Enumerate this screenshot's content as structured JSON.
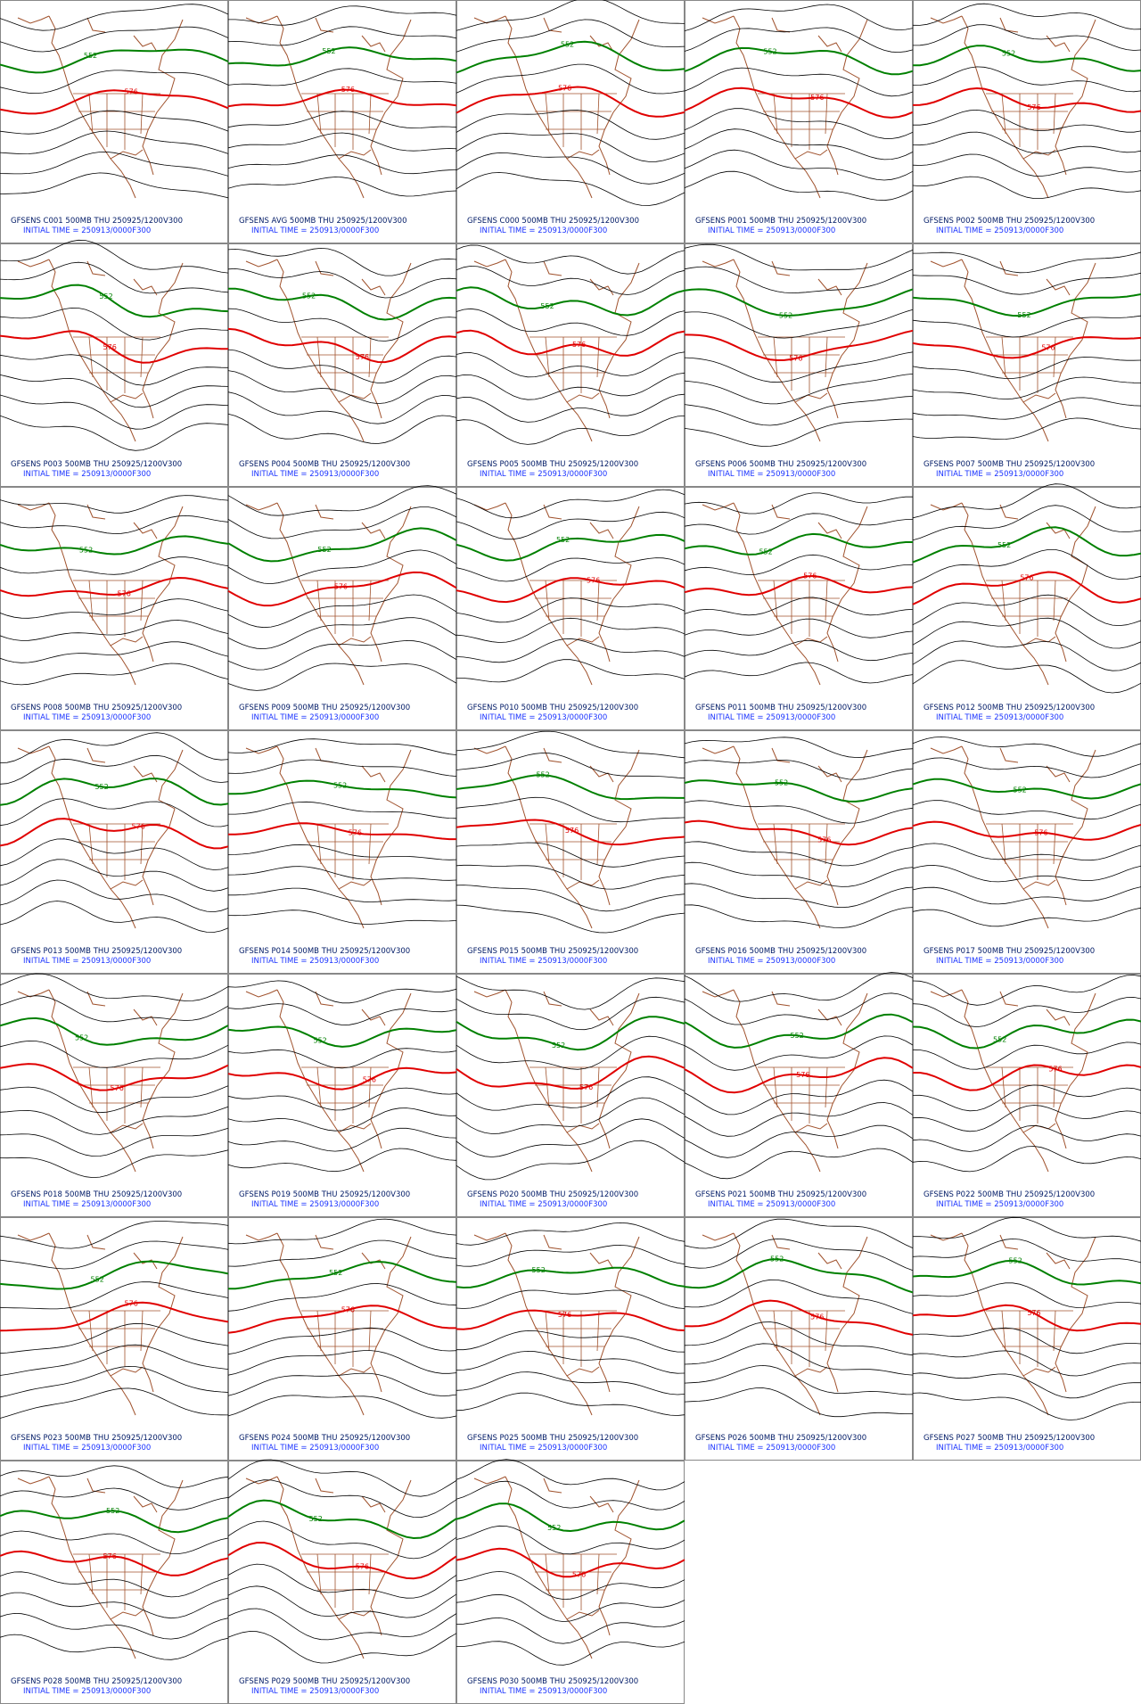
{
  "initial_time": "INITIAL TIME = 250913/0000F300",
  "panels": [
    {
      "title": "GFSENS C001 500MB THU 250925/1200V300",
      "labels": [
        "552",
        "576"
      ]
    },
    {
      "title": "GFSENS AVG 500MB THU 250925/1200V300",
      "labels": [
        "552",
        "576"
      ]
    },
    {
      "title": "GFSENS C000 500MB THU 250925/1200V300",
      "labels": [
        "552",
        "576"
      ]
    },
    {
      "title": "GFSENS P001 500MB THU 250925/1200V300",
      "labels": [
        "552",
        "576"
      ]
    },
    {
      "title": "GFSENS P002 500MB THU 250925/1200V300",
      "labels": [
        "552",
        "576"
      ]
    },
    {
      "title": "GFSENS P003 500MB THU 250925/1200V300",
      "labels": [
        "552",
        "576"
      ]
    },
    {
      "title": "GFSENS P004 500MB THU 250925/1200V300",
      "labels": [
        "552",
        "576"
      ]
    },
    {
      "title": "GFSENS P005 500MB THU 250925/1200V300",
      "labels": [
        "552",
        "576"
      ]
    },
    {
      "title": "GFSENS P006 500MB THU 250925/1200V300",
      "labels": [
        "552",
        "576"
      ]
    },
    {
      "title": "GFSENS P007 500MB THU 250925/1200V300",
      "labels": [
        "552",
        "576"
      ]
    },
    {
      "title": "GFSENS P008 500MB THU 250925/1200V300",
      "labels": [
        "552",
        "576"
      ]
    },
    {
      "title": "GFSENS P009 500MB THU 250925/1200V300",
      "labels": [
        "552",
        "576"
      ]
    },
    {
      "title": "GFSENS P010 500MB THU 250925/1200V300",
      "labels": [
        "552",
        "576"
      ]
    },
    {
      "title": "GFSENS P011 500MB THU 250925/1200V300",
      "labels": [
        "552",
        "576"
      ]
    },
    {
      "title": "GFSENS P012 500MB THU 250925/1200V300",
      "labels": [
        "552",
        "576"
      ]
    },
    {
      "title": "GFSENS P013 500MB THU 250925/1200V300",
      "labels": [
        "552",
        "576"
      ]
    },
    {
      "title": "GFSENS P014 500MB THU 250925/1200V300",
      "labels": [
        "552",
        "576"
      ]
    },
    {
      "title": "GFSENS P015 500MB THU 250925/1200V300",
      "labels": [
        "552",
        "576"
      ]
    },
    {
      "title": "GFSENS P016 500MB THU 250925/1200V300",
      "labels": [
        "552",
        "576"
      ]
    },
    {
      "title": "GFSENS P017 500MB THU 250925/1200V300",
      "labels": [
        "552",
        "576"
      ]
    },
    {
      "title": "GFSENS P018 500MB THU 250925/1200V300",
      "labels": [
        "552",
        "576"
      ]
    },
    {
      "title": "GFSENS P019 500MB THU 250925/1200V300",
      "labels": [
        "552",
        "576"
      ]
    },
    {
      "title": "GFSENS P020 500MB THU 250925/1200V300",
      "labels": [
        "552",
        "576"
      ]
    },
    {
      "title": "GFSENS P021 500MB THU 250925/1200V300",
      "labels": [
        "552",
        "576"
      ]
    },
    {
      "title": "GFSENS P022 500MB THU 250925/1200V300",
      "labels": [
        "552",
        "576"
      ]
    },
    {
      "title": "GFSENS P023 500MB THU 250925/1200V300",
      "labels": [
        "552",
        "576"
      ]
    },
    {
      "title": "GFSENS P024 500MB THU 250925/1200V300",
      "labels": [
        "552",
        "576"
      ]
    },
    {
      "title": "GFSENS P025 500MB THU 250925/1200V300",
      "labels": [
        "552",
        "576"
      ]
    },
    {
      "title": "GFSENS P026 500MB THU 250925/1200V300",
      "labels": [
        "552",
        "576"
      ]
    },
    {
      "title": "GFSENS P027 500MB THU 250925/1200V300",
      "labels": [
        "552",
        "576"
      ]
    },
    {
      "title": "GFSENS P028 500MB THU 250925/1200V300",
      "labels": [
        "552",
        "576"
      ]
    },
    {
      "title": "GFSENS P029 500MB THU 250925/1200V300",
      "labels": [
        "552",
        "576"
      ]
    },
    {
      "title": "GFSENS P030 500MB THU 250925/1200V300",
      "labels": [
        "552",
        "576"
      ]
    }
  ]
}
